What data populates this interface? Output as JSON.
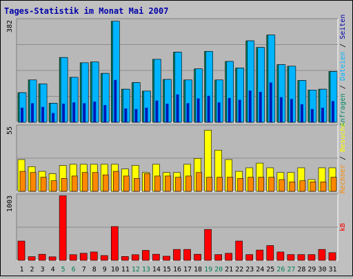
{
  "chart_data": {
    "type": "bar",
    "title": "Tages-Statistik im Monat Mai 2007",
    "categories": [
      "1",
      "2",
      "3",
      "4",
      "5",
      "6",
      "7",
      "8",
      "9",
      "10",
      "11",
      "12",
      "13",
      "14",
      "15",
      "16",
      "17",
      "18",
      "19",
      "20",
      "21",
      "22",
      "23",
      "24",
      "25",
      "26",
      "27",
      "28",
      "29",
      "30",
      "31"
    ],
    "weekend_days": [
      "5",
      "6",
      "12",
      "13",
      "19",
      "20",
      "26",
      "27"
    ],
    "colors": {
      "title": "#0000aa",
      "weekday_label": "#000000",
      "weekend_label": "#007d55",
      "anfragen": "#008a64",
      "dateien": "#00b4ff",
      "seiten": "#0000aa",
      "besuche": "#ffff00",
      "rechner": "#ff8800",
      "kb": "#ff0000",
      "panel_bg": "#b8b8b8",
      "outer_bg": "#c0c0c0"
    },
    "panels": [
      {
        "id": "top",
        "ymax_label": "382",
        "ymax": 382,
        "legend": [
          {
            "text": "Anfragen",
            "color": "#008a64"
          },
          {
            "text": " / ",
            "color": "#000000"
          },
          {
            "text": "Dateien",
            "color": "#00b4ff"
          },
          {
            "text": " / ",
            "color": "#000000"
          },
          {
            "text": "Seiten",
            "color": "#0000aa"
          }
        ],
        "series": [
          {
            "name": "Anfragen",
            "values": [
              112,
              160,
              145,
              72,
              245,
              170,
              225,
              228,
              185,
              382,
              125,
              150,
              118,
              238,
              162,
              265,
              160,
              202,
              268,
              160,
              230,
              205,
              308,
              283,
              330,
              218,
              212,
              158,
              122,
              125,
              192
            ]
          },
          {
            "name": "Dateien",
            "values": [
              112,
              160,
              145,
              72,
              245,
              170,
              225,
              228,
              185,
              382,
              125,
              150,
              118,
              238,
              162,
              265,
              160,
              202,
              268,
              160,
              230,
              205,
              308,
              283,
              330,
              218,
              212,
              158,
              122,
              125,
              192
            ]
          },
          {
            "name": "Seiten",
            "values": [
              55,
              72,
              58,
              35,
              70,
              75,
              72,
              78,
              65,
              160,
              52,
              50,
              55,
              82,
              70,
              105,
              72,
              90,
              100,
              75,
              92,
              85,
              120,
              115,
              150,
              95,
              88,
              68,
              50,
              55,
              80
            ]
          }
        ]
      },
      {
        "id": "middle",
        "ymax_label": "55",
        "ymax": 55,
        "legend": [
          {
            "text": "Rechner",
            "color": "#ff8800"
          },
          {
            "text": " / ",
            "color": "#000000"
          },
          {
            "text": "Besuche",
            "color": "#ffff00"
          }
        ],
        "series": [
          {
            "name": "Besuche",
            "values": [
              27,
              21,
              17,
              15,
              22,
              23,
              23,
              23,
              23,
              23,
              19,
              22,
              16,
              23,
              16,
              16,
              23,
              28,
              52,
              35,
              27,
              17,
              20,
              24,
              20,
              16,
              16,
              20,
              10,
              20,
              20
            ]
          },
          {
            "name": "Rechner",
            "values": [
              17,
              16,
              12,
              9,
              11,
              13,
              16,
              16,
              14,
              17,
              13,
              11,
              15,
              13,
              13,
              12,
              13,
              16,
              12,
              12,
              12,
              11,
              12,
              12,
              12,
              10,
              8,
              9,
              8,
              8,
              12
            ]
          }
        ]
      },
      {
        "id": "bottom",
        "ymax_label": "1003",
        "ymax": 1003,
        "legend": [
          {
            "text": "kB",
            "color": "#ff0000"
          }
        ],
        "series": [
          {
            "name": "kB",
            "values": [
              300,
              58,
              95,
              55,
              1003,
              88,
              110,
              130,
              75,
              525,
              60,
              88,
              155,
              95,
              65,
              170,
              170,
              95,
              480,
              90,
              110,
              300,
              90,
              160,
              230,
              130,
              90,
              90,
              90,
              170,
              120
            ]
          }
        ]
      }
    ]
  }
}
